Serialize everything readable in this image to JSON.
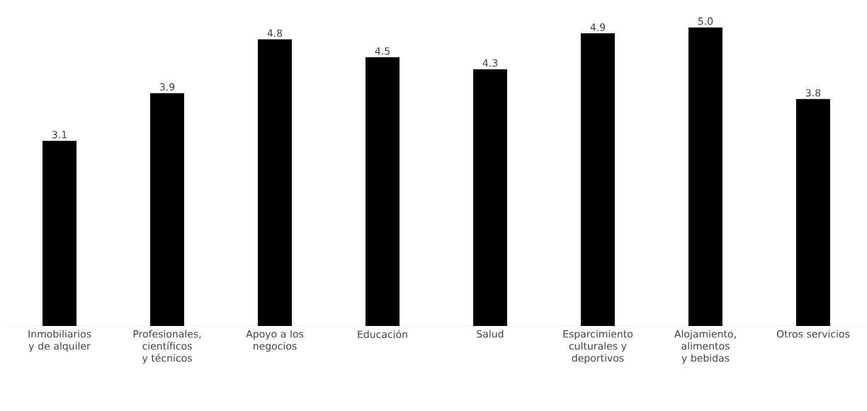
{
  "chart_data": {
    "type": "bar",
    "categories": [
      "Inmobiliarios y de alquiler",
      "Profesionales, científicos y técnicos",
      "Apoyo a los negocios",
      "Educación",
      "Salud",
      "Esparcimiento culturales y deportivos",
      "Alojamiento, alimentos y bebidas",
      "Otros servicios"
    ],
    "values": [
      3.1,
      3.9,
      4.8,
      4.5,
      4.3,
      4.9,
      5.0,
      3.8
    ],
    "value_labels": [
      "3.1",
      "3.9",
      "4.8",
      "4.5",
      "4.3",
      "4.9",
      "5.0",
      "3.8"
    ],
    "color": "#000000"
  }
}
